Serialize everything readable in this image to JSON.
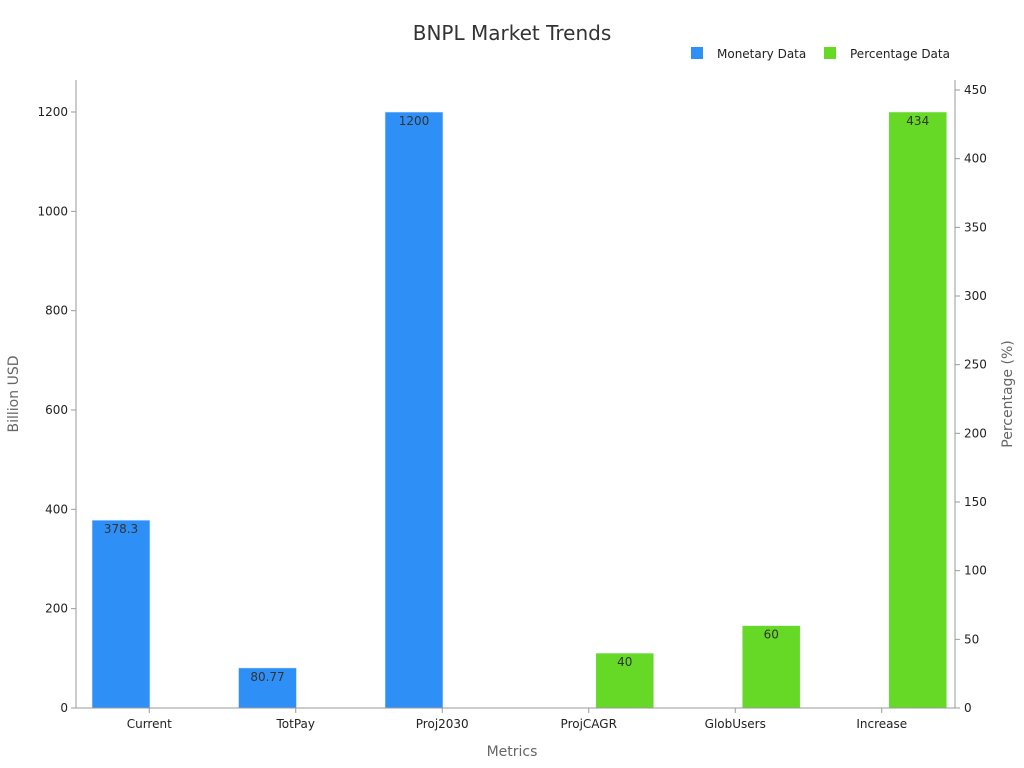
{
  "chart_data": {
    "type": "bar",
    "title": "BNPL Market Trends",
    "xlabel": "Metrics",
    "ylabel": "Billion USD",
    "y2label": "Percentage (%)",
    "categories": [
      "Current",
      "TotPay",
      "Proj2030",
      "ProjCAGR",
      "GlobUsers",
      "Increase"
    ],
    "ylim": [
      0,
      1260
    ],
    "y2lim": [
      0,
      455
    ],
    "yticks": [
      0,
      200,
      400,
      600,
      800,
      1000,
      1200
    ],
    "y2ticks": [
      0,
      50,
      100,
      150,
      200,
      250,
      300,
      350,
      400,
      450
    ],
    "legend_position": "top-right",
    "grid": false,
    "series": [
      {
        "name": "Monetary Data",
        "axis": "left",
        "color": "#2e90f7",
        "values": [
          378.3,
          80.77,
          1200,
          null,
          null,
          null
        ],
        "labels": [
          "378.3",
          "80.77",
          "1200",
          "",
          "",
          ""
        ]
      },
      {
        "name": "Percentage Data",
        "axis": "right",
        "color": "#65d925",
        "values": [
          null,
          null,
          null,
          40,
          60,
          434
        ],
        "labels": [
          "",
          "",
          "",
          "40",
          "60",
          "434"
        ]
      }
    ]
  }
}
